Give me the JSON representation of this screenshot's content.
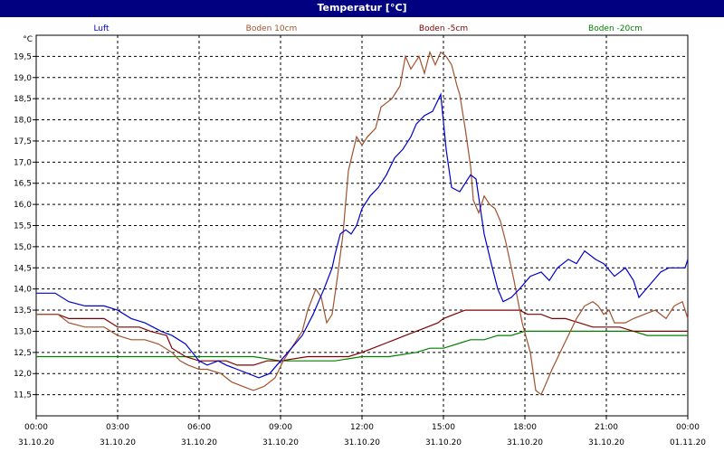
{
  "window": {
    "title": "Temperatur [°C]"
  },
  "colors": {
    "background": "#ffffff",
    "titlebar": "#000080",
    "grid": "#000000"
  },
  "chart_data": {
    "type": "line",
    "title": "Temperatur [°C]",
    "ylabel": "°C",
    "ylim": [
      11.0,
      20.0
    ],
    "xlim_hours": [
      0,
      24
    ],
    "grid": true,
    "legend_position": "top",
    "x_ticks": [
      {
        "time": "00:00",
        "date": "31.10.20"
      },
      {
        "time": "03:00",
        "date": "31.10.20"
      },
      {
        "time": "06:00",
        "date": "31.10.20"
      },
      {
        "time": "09:00",
        "date": "31.10.20"
      },
      {
        "time": "12:00",
        "date": "31.10.20"
      },
      {
        "time": "15:00",
        "date": "31.10.20"
      },
      {
        "time": "18:00",
        "date": "31.10.20"
      },
      {
        "time": "21:00",
        "date": "31.10.20"
      },
      {
        "time": "00:00",
        "date": "01.11.20"
      }
    ],
    "y_ticks": [
      "11,5",
      "12,0",
      "12,5",
      "13,0",
      "13,5",
      "14,0",
      "14,5",
      "15,0",
      "15,5",
      "16,0",
      "16,5",
      "17,0",
      "17,5",
      "18,0",
      "18,5",
      "19,0",
      "19,5"
    ],
    "series": [
      {
        "name": "Luft",
        "color": "#0000cc",
        "points": [
          [
            0,
            13.9
          ],
          [
            0.7,
            13.9
          ],
          [
            1.2,
            13.7
          ],
          [
            1.8,
            13.6
          ],
          [
            2.5,
            13.6
          ],
          [
            3.0,
            13.5
          ],
          [
            3.5,
            13.3
          ],
          [
            4.0,
            13.2
          ],
          [
            4.6,
            13.0
          ],
          [
            5.0,
            12.9
          ],
          [
            5.5,
            12.7
          ],
          [
            6.0,
            12.3
          ],
          [
            6.3,
            12.2
          ],
          [
            6.7,
            12.3
          ],
          [
            7.0,
            12.2
          ],
          [
            7.4,
            12.1
          ],
          [
            7.8,
            12.0
          ],
          [
            8.2,
            11.9
          ],
          [
            8.6,
            12.0
          ],
          [
            9.0,
            12.3
          ],
          [
            9.4,
            12.6
          ],
          [
            9.8,
            12.9
          ],
          [
            10.2,
            13.4
          ],
          [
            10.6,
            14.0
          ],
          [
            10.9,
            14.5
          ],
          [
            11.0,
            14.8
          ],
          [
            11.2,
            15.3
          ],
          [
            11.4,
            15.4
          ],
          [
            11.6,
            15.3
          ],
          [
            11.8,
            15.5
          ],
          [
            12.0,
            15.9
          ],
          [
            12.3,
            16.2
          ],
          [
            12.6,
            16.4
          ],
          [
            12.9,
            16.7
          ],
          [
            13.2,
            17.1
          ],
          [
            13.5,
            17.3
          ],
          [
            13.8,
            17.6
          ],
          [
            14.0,
            17.9
          ],
          [
            14.3,
            18.1
          ],
          [
            14.6,
            18.2
          ],
          [
            14.9,
            18.6
          ],
          [
            15.1,
            17.3
          ],
          [
            15.3,
            16.4
          ],
          [
            15.6,
            16.3
          ],
          [
            15.8,
            16.5
          ],
          [
            16.0,
            16.7
          ],
          [
            16.2,
            16.6
          ],
          [
            16.5,
            15.3
          ],
          [
            16.8,
            14.5
          ],
          [
            17.0,
            14.0
          ],
          [
            17.2,
            13.7
          ],
          [
            17.5,
            13.8
          ],
          [
            17.8,
            14.0
          ],
          [
            18.2,
            14.3
          ],
          [
            18.6,
            14.4
          ],
          [
            18.9,
            14.2
          ],
          [
            19.2,
            14.5
          ],
          [
            19.6,
            14.7
          ],
          [
            19.9,
            14.6
          ],
          [
            20.2,
            14.9
          ],
          [
            20.6,
            14.7
          ],
          [
            20.9,
            14.6
          ],
          [
            21.3,
            14.3
          ],
          [
            21.7,
            14.5
          ],
          [
            22.0,
            14.2
          ],
          [
            22.2,
            13.8
          ],
          [
            22.6,
            14.1
          ],
          [
            23.0,
            14.4
          ],
          [
            23.3,
            14.5
          ],
          [
            23.6,
            14.5
          ],
          [
            23.9,
            14.5
          ],
          [
            24.0,
            14.7
          ]
        ]
      },
      {
        "name": "Boden 10cm",
        "color": "#a0522d",
        "points": [
          [
            0,
            13.4
          ],
          [
            0.8,
            13.4
          ],
          [
            1.2,
            13.2
          ],
          [
            1.8,
            13.1
          ],
          [
            2.5,
            13.1
          ],
          [
            3.0,
            12.9
          ],
          [
            3.5,
            12.8
          ],
          [
            4.0,
            12.8
          ],
          [
            4.5,
            12.7
          ],
          [
            5.0,
            12.5
          ],
          [
            5.3,
            12.3
          ],
          [
            5.6,
            12.2
          ],
          [
            6.0,
            12.1
          ],
          [
            6.3,
            12.1
          ],
          [
            6.8,
            12.0
          ],
          [
            7.2,
            11.8
          ],
          [
            7.6,
            11.7
          ],
          [
            8.0,
            11.6
          ],
          [
            8.4,
            11.7
          ],
          [
            8.8,
            11.9
          ],
          [
            9.1,
            12.3
          ],
          [
            9.5,
            12.7
          ],
          [
            9.8,
            13.0
          ],
          [
            10.0,
            13.5
          ],
          [
            10.3,
            14.0
          ],
          [
            10.5,
            13.8
          ],
          [
            10.7,
            13.2
          ],
          [
            10.9,
            13.4
          ],
          [
            11.1,
            14.3
          ],
          [
            11.3,
            15.3
          ],
          [
            11.5,
            16.8
          ],
          [
            11.8,
            17.6
          ],
          [
            12.0,
            17.4
          ],
          [
            12.2,
            17.6
          ],
          [
            12.5,
            17.8
          ],
          [
            12.7,
            18.3
          ],
          [
            12.9,
            18.4
          ],
          [
            13.1,
            18.5
          ],
          [
            13.4,
            18.8
          ],
          [
            13.6,
            19.5
          ],
          [
            13.8,
            19.2
          ],
          [
            14.1,
            19.5
          ],
          [
            14.3,
            19.1
          ],
          [
            14.5,
            19.6
          ],
          [
            14.7,
            19.3
          ],
          [
            14.9,
            19.6
          ],
          [
            15.1,
            19.5
          ],
          [
            15.3,
            19.3
          ],
          [
            15.5,
            18.8
          ],
          [
            15.6,
            18.6
          ],
          [
            15.8,
            17.8
          ],
          [
            16.0,
            16.9
          ],
          [
            16.1,
            16.1
          ],
          [
            16.3,
            15.8
          ],
          [
            16.5,
            16.2
          ],
          [
            16.7,
            16.0
          ],
          [
            16.9,
            15.9
          ],
          [
            17.1,
            15.6
          ],
          [
            17.3,
            15.1
          ],
          [
            17.6,
            14.2
          ],
          [
            17.9,
            13.2
          ],
          [
            18.2,
            12.5
          ],
          [
            18.4,
            11.6
          ],
          [
            18.6,
            11.5
          ],
          [
            18.8,
            11.8
          ],
          [
            19.0,
            12.1
          ],
          [
            19.3,
            12.5
          ],
          [
            19.6,
            12.9
          ],
          [
            19.9,
            13.3
          ],
          [
            20.2,
            13.6
          ],
          [
            20.5,
            13.7
          ],
          [
            20.7,
            13.6
          ],
          [
            20.9,
            13.4
          ],
          [
            21.1,
            13.5
          ],
          [
            21.3,
            13.2
          ],
          [
            21.7,
            13.2
          ],
          [
            22.0,
            13.3
          ],
          [
            22.4,
            13.4
          ],
          [
            22.8,
            13.5
          ],
          [
            23.2,
            13.3
          ],
          [
            23.5,
            13.6
          ],
          [
            23.8,
            13.7
          ],
          [
            24.0,
            13.3
          ]
        ]
      },
      {
        "name": "Boden -5cm",
        "color": "#800000",
        "points": [
          [
            0,
            13.4
          ],
          [
            0.8,
            13.4
          ],
          [
            1.2,
            13.3
          ],
          [
            2.5,
            13.3
          ],
          [
            3.0,
            13.1
          ],
          [
            3.8,
            13.1
          ],
          [
            4.2,
            13.0
          ],
          [
            4.8,
            12.9
          ],
          [
            5.0,
            12.6
          ],
          [
            5.5,
            12.4
          ],
          [
            6.0,
            12.3
          ],
          [
            6.5,
            12.3
          ],
          [
            7.0,
            12.3
          ],
          [
            7.4,
            12.2
          ],
          [
            8.0,
            12.2
          ],
          [
            8.5,
            12.3
          ],
          [
            9.0,
            12.3
          ],
          [
            10.0,
            12.4
          ],
          [
            11.0,
            12.4
          ],
          [
            11.5,
            12.4
          ],
          [
            12.0,
            12.5
          ],
          [
            12.4,
            12.6
          ],
          [
            12.8,
            12.7
          ],
          [
            13.2,
            12.8
          ],
          [
            13.6,
            12.9
          ],
          [
            14.0,
            13.0
          ],
          [
            14.4,
            13.1
          ],
          [
            14.8,
            13.2
          ],
          [
            15.0,
            13.3
          ],
          [
            15.4,
            13.4
          ],
          [
            15.8,
            13.5
          ],
          [
            16.2,
            13.5
          ],
          [
            16.6,
            13.5
          ],
          [
            17.0,
            13.5
          ],
          [
            17.4,
            13.5
          ],
          [
            17.8,
            13.5
          ],
          [
            18.1,
            13.4
          ],
          [
            18.6,
            13.4
          ],
          [
            19.0,
            13.3
          ],
          [
            19.5,
            13.3
          ],
          [
            20.0,
            13.2
          ],
          [
            20.5,
            13.1
          ],
          [
            21.0,
            13.1
          ],
          [
            21.5,
            13.1
          ],
          [
            22.0,
            13.0
          ],
          [
            22.5,
            13.0
          ],
          [
            23.0,
            13.0
          ],
          [
            23.5,
            13.0
          ],
          [
            24.0,
            13.0
          ]
        ]
      },
      {
        "name": "Boden -20cm",
        "color": "#008000",
        "points": [
          [
            0,
            12.4
          ],
          [
            3.0,
            12.4
          ],
          [
            6.0,
            12.4
          ],
          [
            8.0,
            12.4
          ],
          [
            9.0,
            12.3
          ],
          [
            10.0,
            12.3
          ],
          [
            11.0,
            12.3
          ],
          [
            12.0,
            12.4
          ],
          [
            13.0,
            12.4
          ],
          [
            14.0,
            12.5
          ],
          [
            14.5,
            12.6
          ],
          [
            15.0,
            12.6
          ],
          [
            15.5,
            12.7
          ],
          [
            16.0,
            12.8
          ],
          [
            16.5,
            12.8
          ],
          [
            17.0,
            12.9
          ],
          [
            17.5,
            12.9
          ],
          [
            18.0,
            13.0
          ],
          [
            19.0,
            13.0
          ],
          [
            20.0,
            13.0
          ],
          [
            21.0,
            13.0
          ],
          [
            22.0,
            13.0
          ],
          [
            22.5,
            12.9
          ],
          [
            23.0,
            12.9
          ],
          [
            24.0,
            12.9
          ]
        ]
      }
    ]
  }
}
